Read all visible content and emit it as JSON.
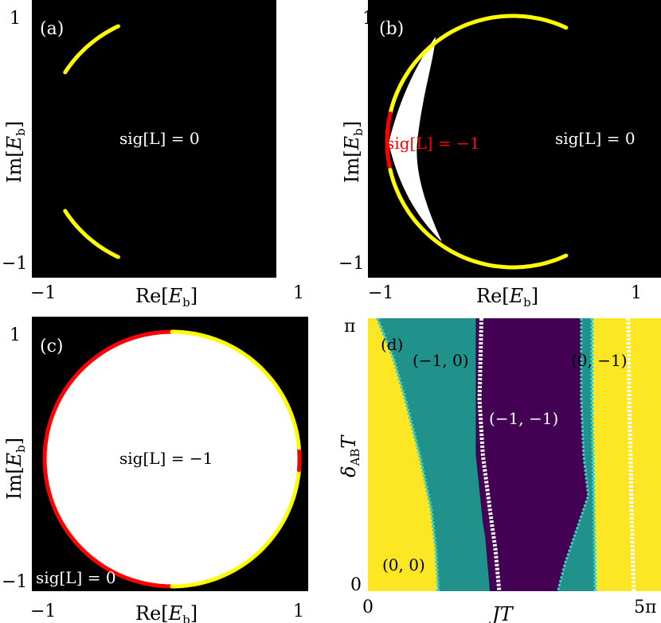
{
  "chart_data": [
    {
      "panel": "(a)",
      "type": "scatter",
      "xlabel": "Re[E_b]",
      "ylabel": "Im[E_b]",
      "xlim": [
        -1.1,
        1.1
      ],
      "ylim": [
        -1.1,
        1.1
      ],
      "xticks": [
        "−1",
        "1"
      ],
      "yticks": [
        "1",
        "−1"
      ],
      "background": "#000000",
      "region_label": "sig[L] = 0",
      "arcs": [
        {
          "color": "#ffff00",
          "radius": 1.0,
          "theta_deg": [
            115,
            147
          ]
        },
        {
          "color": "#ffff00",
          "radius": 1.0,
          "theta_deg": [
            213,
            245
          ]
        }
      ]
    },
    {
      "panel": "(b)",
      "type": "scatter",
      "xlabel": "Re[E_b]",
      "ylabel": "Im[E_b]",
      "xlim": [
        -1.1,
        1.1
      ],
      "ylim": [
        -1.1,
        1.1
      ],
      "xticks": [
        "−1",
        "1"
      ],
      "yticks": [
        "1",
        "−1"
      ],
      "background": "#000000",
      "region_labels": [
        {
          "text": "sig[L] = −1",
          "color": "#ff0000"
        },
        {
          "text": "sig[L] = 0",
          "color": "#ffffff"
        }
      ],
      "arcs": [
        {
          "color": "#ffff00",
          "radius": 1.0,
          "theta_deg": [
            65,
            167
          ]
        },
        {
          "color": "#ff0000",
          "radius": 1.0,
          "theta_deg": [
            167,
            193
          ]
        },
        {
          "color": "#ffff00",
          "radius": 1.0,
          "theta_deg": [
            193,
            295
          ]
        }
      ]
    },
    {
      "panel": "(c)",
      "type": "scatter",
      "xlabel": "Re[E_b]",
      "ylabel": "Im[E_b]",
      "xlim": [
        -1.1,
        1.1
      ],
      "ylim": [
        -1.1,
        1.1
      ],
      "xticks": [
        "−1",
        "1"
      ],
      "yticks": [
        "1",
        "−1"
      ],
      "background": "#000000",
      "region_labels": [
        {
          "text": "sig[L] = −1",
          "color": "#000000"
        },
        {
          "text": "sig[L] = 0",
          "color": "#ffffff"
        }
      ],
      "arcs": [
        {
          "color": "#ff0000",
          "radius": 1.0,
          "theta_deg": [
            90,
            270
          ]
        },
        {
          "color": "#ffff00",
          "radius": 1.0,
          "theta_deg": [
            270,
            355
          ]
        },
        {
          "color": "#ff0000",
          "radius": 1.0,
          "theta_deg": [
            355,
            365
          ]
        },
        {
          "color": "#ffff00",
          "radius": 1.0,
          "theta_deg": [
            5,
            90
          ]
        }
      ]
    },
    {
      "panel": "(d)",
      "type": "heatmap",
      "xlabel": "JT",
      "ylabel": "δ_AB T",
      "xlim": [
        0,
        5
      ],
      "x_unit": "π",
      "ylim": [
        0,
        1
      ],
      "y_unit": "π",
      "xticks": [
        "0",
        "5π"
      ],
      "yticks": [
        "π",
        "0"
      ],
      "colors": {
        "(0,0)": "#fde725",
        "(-1,0)": "#21918c",
        "(-1,-1)": "#440154",
        "(0,-1)": "#21918c"
      },
      "region_labels": [
        "(0, 0)",
        "(−1, 0)",
        "(−1, −1)",
        "(0, −1)"
      ],
      "boundaries": {
        "yellow_teal_left": {
          "y": [
            1.0,
            0.85,
            0.7,
            0.5,
            0.3,
            0.15,
            0.0
          ],
          "x": [
            0.2,
            0.55,
            0.8,
            1.1,
            1.35,
            1.45,
            1.5
          ]
        },
        "white_left": {
          "y": [
            1.0,
            0.85,
            0.7,
            0.5,
            0.3,
            0.15,
            0.0
          ],
          "x": [
            2.42,
            2.4,
            2.38,
            2.45,
            2.6,
            2.72,
            2.8
          ]
        },
        "teal_purple_left": {
          "y": [
            1.0,
            0.5,
            0.25,
            0.2,
            0.0
          ],
          "x": [
            2.3,
            2.3,
            2.45,
            2.5,
            2.6
          ]
        },
        "teal_right_left": {
          "y": [
            1.0,
            0.7,
            0.5,
            0.35,
            0.2,
            0.1,
            0.0
          ],
          "x": [
            4.55,
            4.55,
            4.6,
            4.7,
            4.4,
            4.2,
            4.05
          ]
        },
        "cyan_right": {
          "y": [
            1.0,
            0.7,
            0.5,
            0.3,
            0.1,
            0.0
          ],
          "x": [
            4.78,
            4.78,
            4.8,
            4.82,
            4.84,
            4.85
          ]
        },
        "white_right": {
          "y": [
            1.0,
            0.7,
            0.5,
            0.3,
            0.1,
            0.0
          ],
          "x": [
            5.55,
            5.57,
            5.6,
            5.62,
            5.65,
            5.67
          ]
        }
      }
    }
  ]
}
